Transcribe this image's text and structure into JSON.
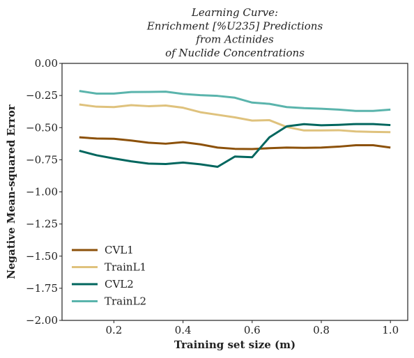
{
  "chart_data": {
    "type": "line",
    "title_lines": [
      "Learning Curve:",
      "Enrichment [%U235] Predictions",
      "from Actinides",
      "of Nuclide Concentrations"
    ],
    "xlabel": "Training set size (m)",
    "ylabel": "Negative Mean-squared Error",
    "xlim": [
      0.05,
      1.05
    ],
    "ylim": [
      -2.0,
      0.0
    ],
    "xticks": [
      0.2,
      0.4,
      0.6,
      0.8,
      1.0
    ],
    "xtick_labels": [
      "0.2",
      "0.4",
      "0.6",
      "0.8",
      "1.0"
    ],
    "yticks": [
      0.0,
      -0.25,
      -0.5,
      -0.75,
      -1.0,
      -1.25,
      -1.5,
      -1.75,
      -2.0
    ],
    "ytick_labels": [
      "0.00",
      "−0.25",
      "−0.50",
      "−0.75",
      "−1.00",
      "−1.25",
      "−1.50",
      "−1.75",
      "−2.00"
    ],
    "grid": false,
    "legend_position": "lower-left",
    "x": [
      0.1,
      0.15,
      0.2,
      0.25,
      0.3,
      0.35,
      0.4,
      0.45,
      0.5,
      0.55,
      0.6,
      0.65,
      0.7,
      0.75,
      0.8,
      0.85,
      0.9,
      0.95,
      1.0
    ],
    "series": [
      {
        "name": "CVL1",
        "color": "#8c510a",
        "values": [
          -0.575,
          -0.585,
          -0.587,
          -0.6,
          -0.617,
          -0.625,
          -0.613,
          -0.63,
          -0.655,
          -0.665,
          -0.667,
          -0.66,
          -0.655,
          -0.657,
          -0.655,
          -0.648,
          -0.637,
          -0.637,
          -0.655
        ]
      },
      {
        "name": "TrainL1",
        "color": "#dfc27d",
        "values": [
          -0.32,
          -0.337,
          -0.34,
          -0.325,
          -0.333,
          -0.328,
          -0.345,
          -0.38,
          -0.4,
          -0.42,
          -0.445,
          -0.442,
          -0.495,
          -0.522,
          -0.522,
          -0.52,
          -0.53,
          -0.533,
          -0.535
        ]
      },
      {
        "name": "CVL2",
        "color": "#01665e",
        "values": [
          -0.68,
          -0.715,
          -0.74,
          -0.762,
          -0.78,
          -0.783,
          -0.772,
          -0.785,
          -0.805,
          -0.725,
          -0.73,
          -0.575,
          -0.49,
          -0.473,
          -0.482,
          -0.478,
          -0.472,
          -0.472,
          -0.48
        ]
      },
      {
        "name": "TrainL2",
        "color": "#5ab4ac",
        "values": [
          -0.215,
          -0.235,
          -0.235,
          -0.223,
          -0.222,
          -0.22,
          -0.238,
          -0.247,
          -0.253,
          -0.267,
          -0.305,
          -0.315,
          -0.34,
          -0.348,
          -0.353,
          -0.36,
          -0.37,
          -0.37,
          -0.36
        ]
      }
    ]
  }
}
